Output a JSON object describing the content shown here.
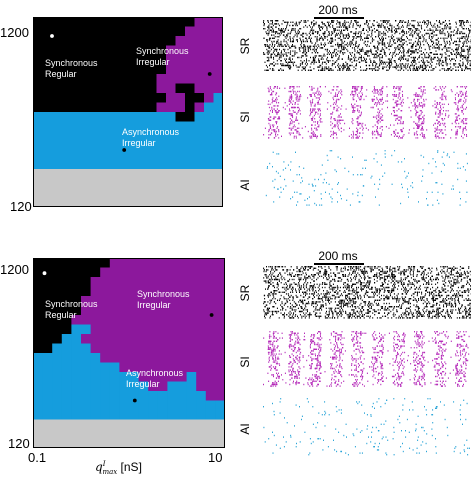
{
  "colors": {
    "synchronous_regular": "#000000",
    "synchronous_irregular": "#8c189c",
    "asynchronous_irregular": "#159ddd",
    "low": "#c8c8c8",
    "raster_sr": "#000000",
    "raster_si": "#b52ab9",
    "raster_ai": "#2aa5d8"
  },
  "chart_data": [
    {
      "type": "heatmap",
      "panel": "top",
      "ytick_labels": [
        "1200",
        "120"
      ],
      "xtick_labels": [],
      "xlabel": "",
      "region_labels": {
        "synchronous_regular": "Synchronous\nRegular",
        "synchronous_irregular": "Synchronous\nIrregular",
        "asynchronous_irregular": "Asynchronous\nIrregular"
      },
      "grid": {
        "cols": 20,
        "rows": 20,
        "legend": {
          "0": "synchronous_regular",
          "1": "synchronous_irregular",
          "2": "asynchronous_irregular",
          "3": "low"
        },
        "cells": [
          "00000000000000000111",
          "00000000000000001111",
          "00000000000000011111",
          "00000000000000111111",
          "00000000000000111111",
          "00000000000000111111",
          "00000000000001111111",
          "00000000000001100111",
          "00000000000000110012",
          "00000000000001110122",
          "22222222222222200222",
          "22222222222222222222",
          "22222222222222222222",
          "22222222222222222222",
          "22222222222222222222",
          "22222222222222222222",
          "33333333333333333333",
          "33333333333333333333",
          "33333333333333333333",
          "33333333333333333333"
        ]
      },
      "markers": [
        {
          "x": 0.1,
          "y": 0.1,
          "color": "white"
        },
        {
          "x": 0.93,
          "y": 0.3,
          "color": "black"
        },
        {
          "x": 0.48,
          "y": 0.7,
          "color": "black"
        }
      ]
    },
    {
      "type": "heatmap",
      "panel": "bottom",
      "ytick_labels": [
        "1200",
        "120"
      ],
      "xtick_labels": [
        "0.1",
        "10"
      ],
      "xlabel": "q_max^I [nS]",
      "region_labels": {
        "synchronous_regular": "Synchronous\nRegular",
        "synchronous_irregular": "Synchronous\nIrregular",
        "asynchronous_irregular": "Asynchronous\nIrregular"
      },
      "grid": {
        "cols": 20,
        "rows": 20,
        "legend": {
          "0": "synchronous_regular",
          "1": "synchronous_irregular",
          "2": "asynchronous_irregular",
          "3": "low"
        },
        "cells": [
          "00000000111111111111",
          "00000001111111111111",
          "00000011111111111111",
          "00000011111111111111",
          "00000111111111111111",
          "00000111111111111111",
          "00001111111111111111",
          "00002211111111111111",
          "00022111111111111111",
          "00222211111111111111",
          "22222221111111111111",
          "22222222211111111111",
          "22222222222111112111",
          "22222222222211222111",
          "22222222222222222211",
          "22222222222222222222",
          "22222222222222222222",
          "33333333333333333333",
          "33333333333333333333",
          "33333333333333333333"
        ]
      },
      "markers": [
        {
          "x": 0.06,
          "y": 0.08,
          "color": "white"
        },
        {
          "x": 0.93,
          "y": 0.3,
          "color": "black"
        },
        {
          "x": 0.53,
          "y": 0.75,
          "color": "black"
        }
      ]
    }
  ],
  "rasters": {
    "scale_label": "200 ms",
    "rows": [
      {
        "label": "SR",
        "color_key": "raster_sr",
        "density": 1.0,
        "sync": 0.0
      },
      {
        "label": "SI",
        "color_key": "raster_si",
        "density": 0.55,
        "sync": 0.85
      },
      {
        "label": "AI",
        "color_key": "raster_ai",
        "density": 0.08,
        "sync": 0.0
      }
    ]
  }
}
